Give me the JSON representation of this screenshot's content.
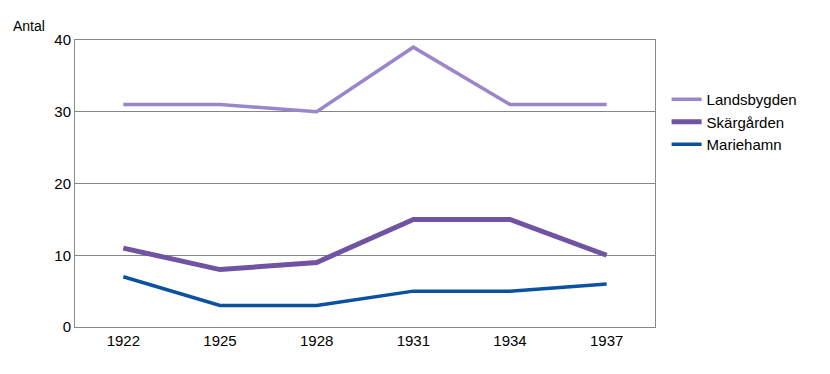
{
  "chart_data": {
    "type": "line",
    "y_label": "Antal",
    "categories": [
      "1922",
      "1925",
      "1928",
      "1931",
      "1934",
      "1937"
    ],
    "series": [
      {
        "name": "Landsbygden",
        "color": "#9b86c9",
        "values": [
          31,
          31,
          30,
          39,
          31,
          31
        ]
      },
      {
        "name": "Skärgården",
        "color": "#7153a3",
        "values": [
          11,
          8,
          9,
          15,
          15,
          10
        ]
      },
      {
        "name": "Mariehamn",
        "color": "#0a52a0",
        "values": [
          7,
          3,
          3,
          5,
          5,
          6
        ]
      }
    ],
    "ylim": [
      0,
      40
    ],
    "yticks": [
      0,
      10,
      20,
      30,
      40
    ],
    "grid": true,
    "legend": "right"
  }
}
